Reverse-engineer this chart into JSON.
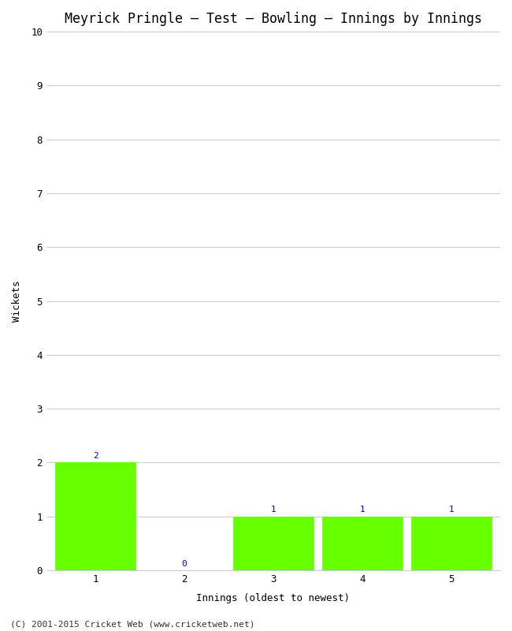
{
  "title": "Meyrick Pringle – Test – Bowling – Innings by Innings",
  "xlabel": "Innings (oldest to newest)",
  "ylabel": "Wickets",
  "categories": [
    "1",
    "2",
    "3",
    "4",
    "5"
  ],
  "values": [
    2,
    0,
    1,
    1,
    1
  ],
  "bar_color": "#66ff00",
  "bar_edge_color": "#66ff00",
  "ylim": [
    0,
    10
  ],
  "yticks": [
    0,
    1,
    2,
    3,
    4,
    5,
    6,
    7,
    8,
    9,
    10
  ],
  "label_color": "#0000cc",
  "background_color": "#ffffff",
  "grid_color": "#cccccc",
  "footer": "(C) 2001-2015 Cricket Web (www.cricketweb.net)",
  "title_fontsize": 12,
  "axis_label_fontsize": 9,
  "tick_fontsize": 9,
  "annotation_fontsize": 8,
  "footer_fontsize": 8
}
